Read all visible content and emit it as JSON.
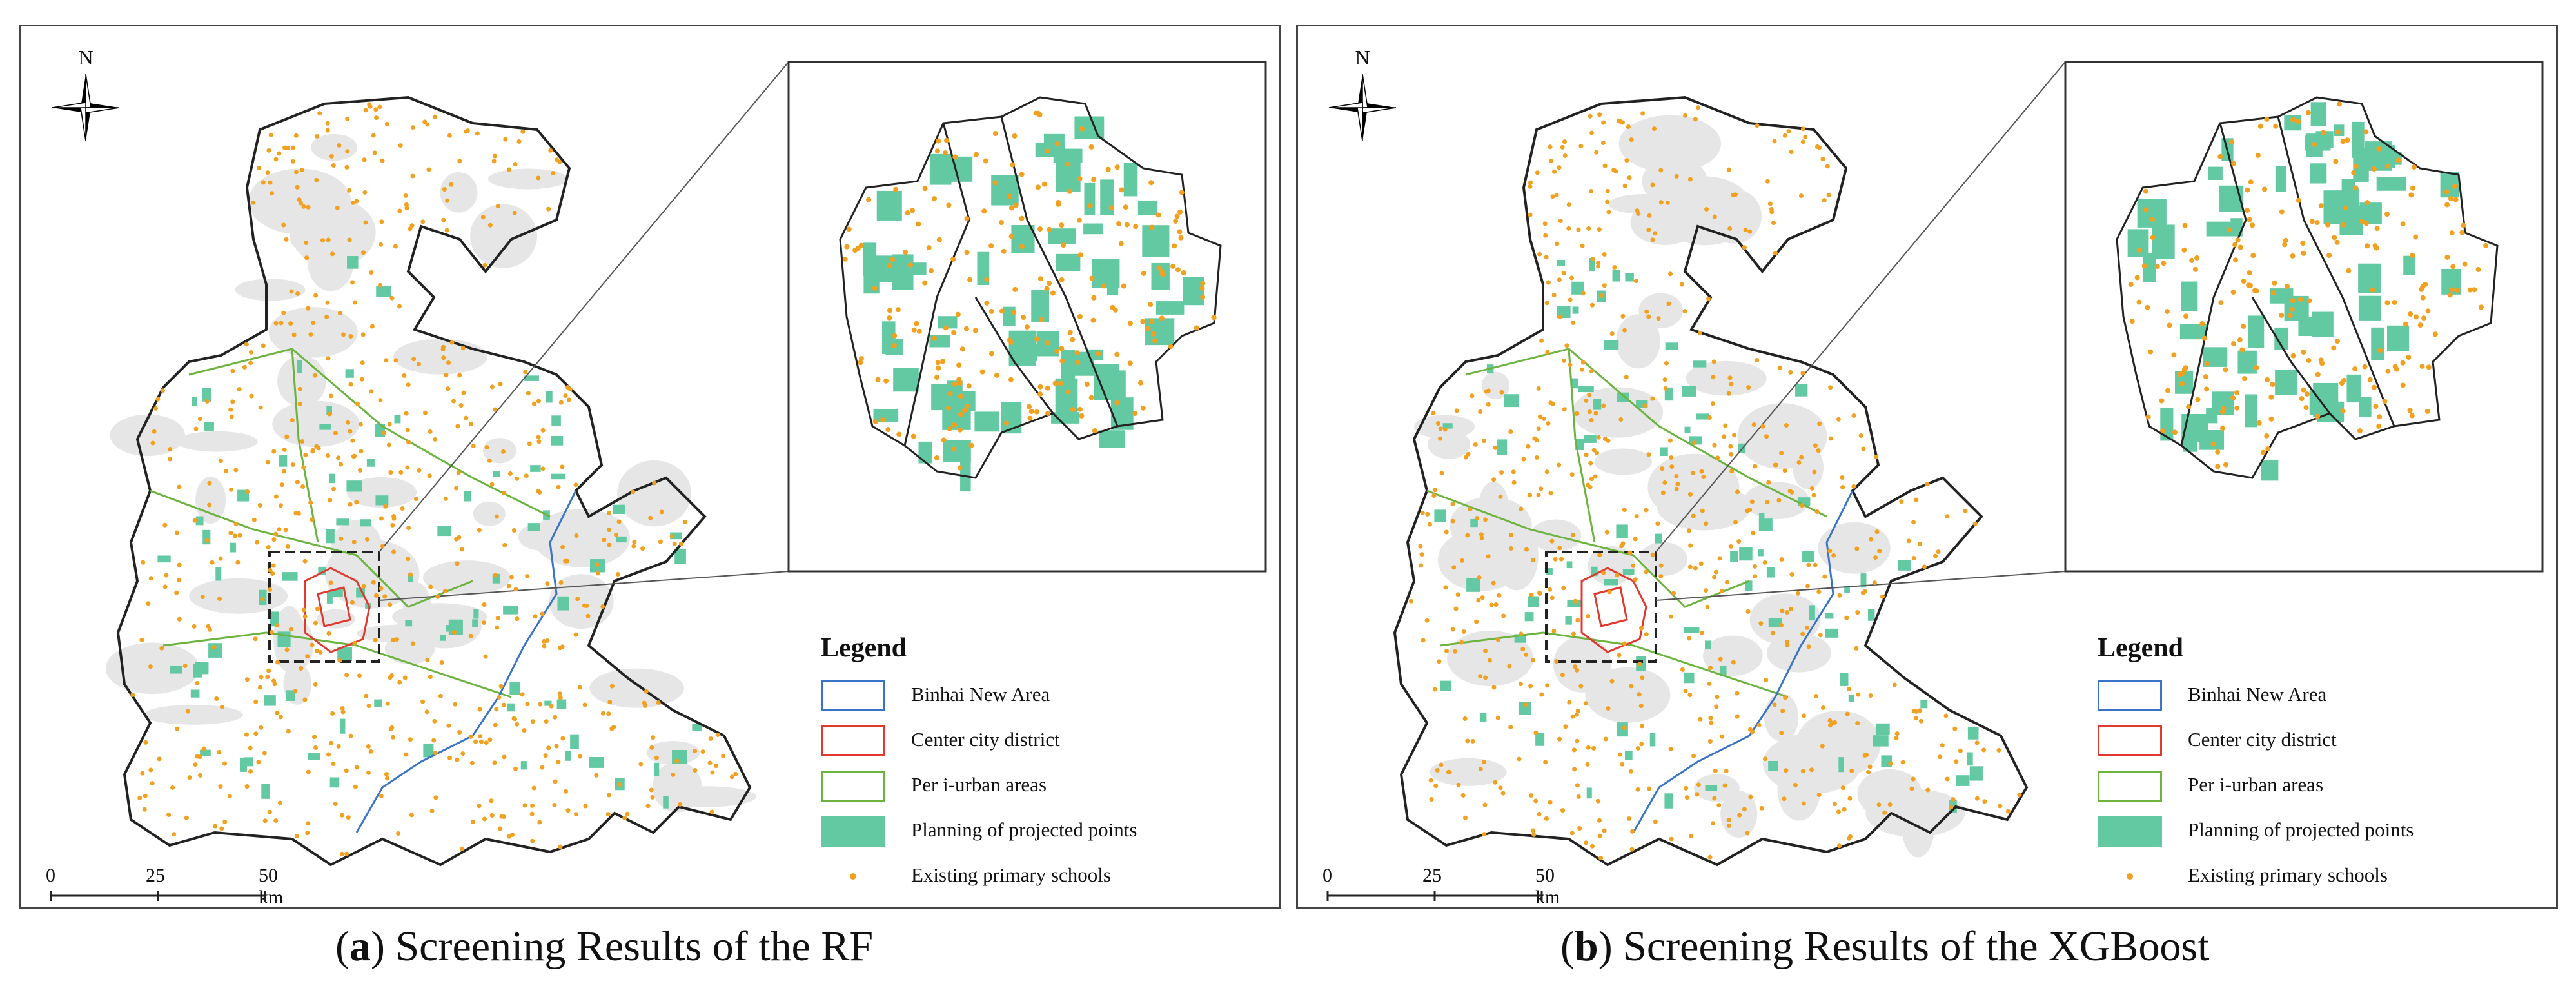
{
  "panels": [
    {
      "id": "a",
      "caption_letter": "a",
      "caption_text": " Screening Results of the RF",
      "north_label": "N",
      "scale_ticks": [
        "0",
        "25",
        "50 km"
      ],
      "legend": {
        "title": "Legend",
        "items": [
          {
            "label": "Binhai New Area",
            "kind": "outline",
            "color": "#3a74c8"
          },
          {
            "label": "Center city district",
            "kind": "outline",
            "color": "#e03a2f"
          },
          {
            "label": "Per i-urban areas",
            "kind": "outline",
            "color": "#6db33f"
          },
          {
            "label": "Planning of projected points",
            "kind": "fill",
            "color": "#63c9a3"
          },
          {
            "label": "Existing primary schools",
            "kind": "dot",
            "color": "#f2a01f"
          }
        ]
      }
    },
    {
      "id": "b",
      "caption_letter": "b",
      "caption_text": " Screening Results of the XGBoost",
      "north_label": "N",
      "scale_ticks": [
        "0",
        "25",
        "50 km"
      ],
      "legend": {
        "title": "Legend",
        "items": [
          {
            "label": "Binhai New Area",
            "kind": "outline",
            "color": "#3a74c8"
          },
          {
            "label": "Center city district",
            "kind": "outline",
            "color": "#e03a2f"
          },
          {
            "label": "Per i-urban areas",
            "kind": "outline",
            "color": "#6db33f"
          },
          {
            "label": "Planning of projected points",
            "kind": "fill",
            "color": "#63c9a3"
          },
          {
            "label": "Existing primary schools",
            "kind": "dot",
            "color": "#f2a01f"
          }
        ]
      }
    }
  ],
  "colors": {
    "school_dot": "#f2a01f",
    "planning_fill": "#63c9a3",
    "urban_gray": "#e6e6e6",
    "boundary": "#222222"
  }
}
